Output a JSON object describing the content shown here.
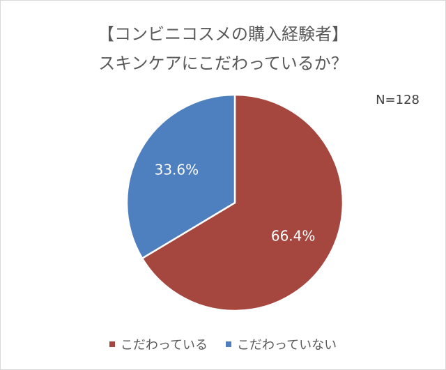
{
  "chart_data": {
    "type": "pie",
    "title": "【コンビニコスメの購入経験者】",
    "subtitle": "スキンケアにこだわっているか？",
    "note": "N=128",
    "categories": [
      "こだわっている",
      "こだわっていない"
    ],
    "values": [
      66.4,
      33.6
    ],
    "data_labels": [
      "66.4%",
      "33.6%"
    ],
    "colors": [
      "#A5473F",
      "#4E7FBF"
    ],
    "legend_position": "bottom",
    "start_angle_deg": 0,
    "direction": "clockwise"
  }
}
